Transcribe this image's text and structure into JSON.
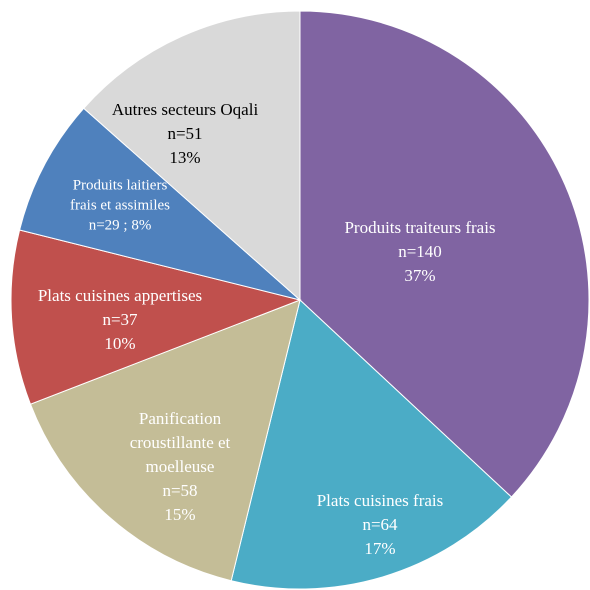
{
  "chart_data": {
    "type": "pie",
    "categories": [
      [
        "Produits traiteurs frais"
      ],
      [
        "Plats cuisines frais"
      ],
      [
        "Panification",
        "croustillante et",
        "moelleuse"
      ],
      [
        "Plats cuisines appertises"
      ],
      [
        "Produits laitiers",
        "frais et assimiles"
      ],
      [
        "Autres secteurs Oqali"
      ]
    ],
    "values": [
      140,
      64,
      58,
      37,
      29,
      51
    ],
    "value_labels": [
      "n=140",
      "n=64",
      "n=58",
      "n=37",
      "n=29 ; 8%",
      "n=51"
    ],
    "percents": [
      37,
      17,
      15,
      10,
      8,
      13
    ],
    "percent_labels": [
      "37%",
      "17%",
      "15%",
      "10%",
      null,
      "13%"
    ],
    "colors": [
      "#8064a2",
      "#4bacc6",
      "#c4bd97",
      "#c0504d",
      "#4f81bd",
      "#d9d9d9"
    ],
    "text_colors": [
      "#ffffff",
      "#ffffff",
      "#ffffff",
      "#ffffff",
      "#ffffff",
      "#000000"
    ]
  }
}
